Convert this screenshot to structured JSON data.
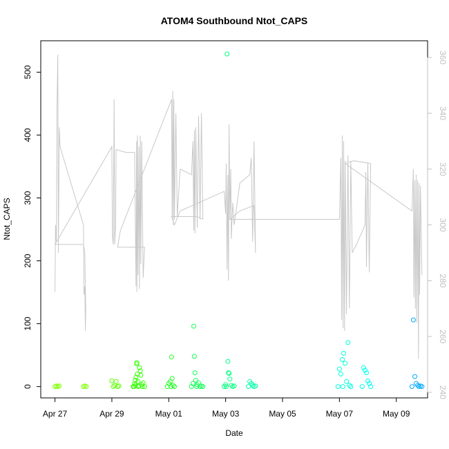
{
  "chart_data": {
    "type": "scatter",
    "title": "ATOM4 Southbound Ntot_CAPS",
    "xlabel": "Date",
    "ylabel": "Ntot_CAPS",
    "x_ticks": [
      "Apr 27",
      "Apr 29",
      "May 01",
      "May 03",
      "May 05",
      "May 07",
      "May 09"
    ],
    "x_tick_days": [
      0,
      2,
      4,
      6,
      8,
      10,
      12
    ],
    "xlim_days": [
      -0.5,
      13.1
    ],
    "ylim": [
      -18,
      550
    ],
    "y_ticks": [
      0,
      100,
      200,
      300,
      400,
      500
    ],
    "y2lim": [
      238,
      366
    ],
    "y2_ticks": [
      240,
      260,
      280,
      300,
      320,
      340,
      360
    ],
    "grid": false,
    "scatter_series": [
      {
        "color": "#7fff00",
        "points": [
          [
            0.0,
            0
          ],
          [
            0.05,
            1
          ],
          [
            0.1,
            0
          ],
          [
            0.15,
            1
          ],
          [
            1.0,
            0
          ],
          [
            1.05,
            1
          ],
          [
            1.1,
            0
          ]
        ]
      },
      {
        "color": "#5aff00",
        "points": [
          [
            2.0,
            9
          ],
          [
            2.05,
            0
          ],
          [
            2.1,
            2
          ],
          [
            2.15,
            8
          ],
          [
            2.2,
            0
          ],
          [
            2.25,
            1
          ]
        ]
      },
      {
        "color": "#33ff00",
        "points": [
          [
            2.75,
            0
          ],
          [
            2.8,
            5
          ],
          [
            2.82,
            10
          ],
          [
            2.85,
            15
          ],
          [
            2.87,
            36
          ],
          [
            2.88,
            38
          ],
          [
            2.9,
            20
          ],
          [
            2.92,
            8
          ],
          [
            2.95,
            1
          ],
          [
            2.97,
            30
          ],
          [
            3.0,
            25
          ],
          [
            3.02,
            18
          ],
          [
            3.05,
            3
          ],
          [
            3.1,
            6
          ],
          [
            3.15,
            0
          ],
          [
            2.78,
            0
          ],
          [
            2.83,
            2
          ],
          [
            2.93,
            0
          ],
          [
            3.07,
            0
          ]
        ]
      },
      {
        "color": "#22ff22",
        "points": [
          [
            3.95,
            0
          ],
          [
            4.0,
            5
          ],
          [
            4.05,
            8
          ],
          [
            4.1,
            47
          ],
          [
            4.12,
            13
          ],
          [
            4.15,
            2
          ],
          [
            4.2,
            0
          ],
          [
            4.08,
            0
          ]
        ]
      },
      {
        "color": "#11ff55",
        "points": [
          [
            4.8,
            0
          ],
          [
            4.85,
            5
          ],
          [
            4.88,
            96
          ],
          [
            4.9,
            48
          ],
          [
            4.92,
            22
          ],
          [
            4.95,
            10
          ],
          [
            5.0,
            3
          ],
          [
            5.05,
            6
          ],
          [
            5.1,
            0
          ],
          [
            5.15,
            1
          ],
          [
            5.2,
            0
          ],
          [
            4.98,
            0
          ]
        ]
      },
      {
        "color": "#00ff7f",
        "points": [
          [
            5.95,
            0
          ],
          [
            6.0,
            3
          ],
          [
            6.05,
            529
          ],
          [
            6.08,
            40
          ],
          [
            6.1,
            22
          ],
          [
            6.12,
            21
          ],
          [
            6.15,
            12
          ],
          [
            6.2,
            2
          ],
          [
            6.25,
            0
          ],
          [
            6.3,
            1
          ],
          [
            6.02,
            0
          ]
        ]
      },
      {
        "color": "#00ffaa",
        "points": [
          [
            6.8,
            0
          ],
          [
            6.85,
            8
          ],
          [
            6.9,
            5
          ],
          [
            6.95,
            2
          ],
          [
            7.0,
            0
          ],
          [
            7.05,
            1
          ]
        ]
      },
      {
        "color": "#00ffdd",
        "points": [
          [
            9.95,
            0
          ],
          [
            10.0,
            28
          ],
          [
            10.05,
            20
          ],
          [
            10.1,
            43
          ],
          [
            10.15,
            53
          ],
          [
            10.2,
            37
          ],
          [
            10.25,
            8
          ],
          [
            10.3,
            70
          ],
          [
            10.35,
            2
          ],
          [
            10.4,
            0
          ],
          [
            10.12,
            0
          ]
        ]
      },
      {
        "color": "#00ffee",
        "points": [
          [
            10.8,
            0
          ],
          [
            10.85,
            30
          ],
          [
            10.9,
            26
          ],
          [
            10.95,
            22
          ],
          [
            11.0,
            9
          ],
          [
            11.05,
            5
          ],
          [
            11.1,
            0
          ]
        ]
      },
      {
        "color": "#00aaff",
        "points": [
          [
            12.55,
            0
          ],
          [
            12.6,
            106
          ],
          [
            12.65,
            16
          ],
          [
            12.7,
            5
          ],
          [
            12.75,
            2
          ],
          [
            12.8,
            0
          ],
          [
            12.85,
            1
          ],
          [
            12.9,
            0
          ]
        ]
      }
    ],
    "line_series": {
      "axis": "right",
      "color": "#c8c8c8",
      "points": [
        [
          0.0,
          276
        ],
        [
          0.02,
          300
        ],
        [
          0.05,
          294
        ],
        [
          0.07,
          342
        ],
        [
          0.1,
          361
        ],
        [
          0.12,
          290
        ],
        [
          0.15,
          335
        ],
        [
          0.18,
          328
        ],
        [
          1.0,
          300
        ],
        [
          1.02,
          275
        ],
        [
          1.05,
          278
        ],
        [
          1.07,
          262
        ],
        [
          1.08,
          270
        ],
        [
          1.05,
          290
        ],
        [
          1.0,
          293
        ],
        [
          0.0,
          293
        ],
        [
          2.0,
          328
        ],
        [
          2.02,
          296
        ],
        [
          2.05,
          293
        ],
        [
          2.08,
          345
        ],
        [
          2.1,
          293
        ],
        [
          2.13,
          300
        ],
        [
          2.15,
          327
        ],
        [
          2.5,
          326
        ],
        [
          2.8,
          326
        ],
        [
          2.85,
          278
        ],
        [
          2.87,
          330
        ],
        [
          2.88,
          276
        ],
        [
          2.9,
          332
        ],
        [
          2.92,
          282
        ],
        [
          2.95,
          328
        ],
        [
          2.97,
          277
        ],
        [
          3.0,
          332
        ],
        [
          3.02,
          286
        ],
        [
          3.05,
          330
        ],
        [
          3.1,
          281
        ],
        [
          3.15,
          292
        ],
        [
          2.2,
          292
        ],
        [
          2.3,
          298
        ],
        [
          4.1,
          345
        ],
        [
          4.12,
          302
        ],
        [
          4.14,
          348
        ],
        [
          4.16,
          300
        ],
        [
          4.18,
          345
        ],
        [
          4.2,
          302
        ],
        [
          4.25,
          340
        ],
        [
          4.3,
          303
        ],
        [
          4.4,
          320
        ],
        [
          4.8,
          318
        ],
        [
          4.85,
          330
        ],
        [
          4.88,
          298
        ],
        [
          4.9,
          334
        ],
        [
          4.92,
          297
        ],
        [
          4.95,
          335
        ],
        [
          5.0,
          299
        ],
        [
          5.05,
          339
        ],
        [
          5.1,
          302
        ],
        [
          5.15,
          340
        ],
        [
          5.2,
          302
        ],
        [
          5.0,
          303
        ],
        [
          4.1,
          303
        ],
        [
          4.2,
          300
        ],
        [
          4.4,
          305
        ],
        [
          5.95,
          312
        ],
        [
          6.0,
          304
        ],
        [
          6.02,
          322
        ],
        [
          6.05,
          284
        ],
        [
          6.08,
          318
        ],
        [
          6.1,
          280
        ],
        [
          6.12,
          336
        ],
        [
          6.15,
          302
        ],
        [
          6.18,
          320
        ],
        [
          6.2,
          295
        ],
        [
          6.25,
          308
        ],
        [
          6.3,
          300
        ],
        [
          6.5,
          315
        ],
        [
          6.85,
          318
        ],
        [
          6.9,
          324
        ],
        [
          6.95,
          294
        ],
        [
          7.0,
          330
        ],
        [
          7.05,
          290
        ],
        [
          7.0,
          307
        ],
        [
          6.5,
          305
        ],
        [
          6.15,
          302
        ],
        [
          10.0,
          302
        ],
        [
          10.05,
          324
        ],
        [
          10.08,
          266
        ],
        [
          10.1,
          332
        ],
        [
          10.13,
          263
        ],
        [
          10.15,
          330
        ],
        [
          10.18,
          262
        ],
        [
          10.2,
          323
        ],
        [
          10.25,
          268
        ],
        [
          10.3,
          325
        ],
        [
          10.35,
          270
        ],
        [
          10.4,
          323
        ],
        [
          10.45,
          290
        ],
        [
          10.6,
          293
        ],
        [
          10.9,
          300
        ],
        [
          10.93,
          319
        ],
        [
          10.95,
          285
        ],
        [
          11.0,
          322
        ],
        [
          11.05,
          283
        ],
        [
          11.1,
          322
        ],
        [
          10.5,
          323
        ],
        [
          10.2,
          322
        ],
        [
          12.55,
          305
        ],
        [
          12.6,
          320
        ],
        [
          12.62,
          274
        ],
        [
          12.65,
          316
        ],
        [
          12.67,
          270
        ],
        [
          12.7,
          318
        ],
        [
          12.72,
          265
        ],
        [
          12.75,
          316
        ],
        [
          12.78,
          252
        ],
        [
          12.8,
          315
        ],
        [
          12.82,
          275
        ],
        [
          12.85,
          314
        ],
        [
          12.9,
          282
        ]
      ]
    }
  }
}
